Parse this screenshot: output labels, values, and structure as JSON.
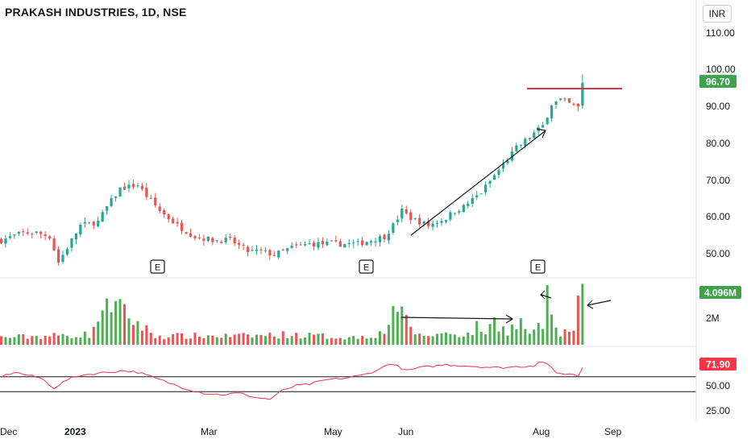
{
  "header": {
    "title": "PRAKASH INDUSTRIES, 1D, NSE",
    "currency": "INR"
  },
  "colors": {
    "up": "#26a69a",
    "up_bar": "#4caf50",
    "down": "#ef5350",
    "hline": "#e0334a",
    "rsi_line": "#f23645",
    "badge_green": "#3fa34d",
    "badge_red": "#f23645"
  },
  "price_axis": {
    "ticks": [
      "110.00",
      "100.00",
      "90.00",
      "80.00",
      "70.00",
      "60.00",
      "50.00"
    ],
    "last_price": "96.70"
  },
  "volume_axis": {
    "ticks": [
      "2M"
    ],
    "last_volume": "4.096M"
  },
  "rsi_axis": {
    "ticks": [
      "50.00",
      "25.00"
    ],
    "last_value": "71.90"
  },
  "time_axis": {
    "labels": [
      "Dec",
      "2023",
      "Mar",
      "May",
      "Jun",
      "Aug",
      "Sep"
    ]
  },
  "earnings_markers": [
    "E",
    "E",
    "E"
  ],
  "chart_data": {
    "type": "candlestick",
    "title": "PRAKASH INDUSTRIES, 1D, NSE",
    "price_range": [
      45,
      115
    ],
    "resistance_level": 94.7,
    "rsi_levels": [
      60,
      40
    ],
    "price_path": [
      [
        0,
        54
      ],
      [
        5,
        56
      ],
      [
        8,
        56
      ],
      [
        11,
        55
      ],
      [
        13,
        48
      ],
      [
        15,
        52
      ],
      [
        18,
        58
      ],
      [
        22,
        59
      ],
      [
        24,
        63
      ],
      [
        27,
        68
      ],
      [
        31,
        69
      ],
      [
        33,
        66
      ],
      [
        36,
        62
      ],
      [
        40,
        58
      ],
      [
        44,
        55
      ],
      [
        48,
        54
      ],
      [
        52,
        54
      ],
      [
        56,
        51
      ],
      [
        59,
        51
      ],
      [
        62,
        50
      ],
      [
        66,
        52
      ],
      [
        70,
        53
      ],
      [
        74,
        53
      ],
      [
        78,
        53
      ],
      [
        81,
        53
      ],
      [
        84,
        54
      ],
      [
        87,
        55
      ],
      [
        89,
        58
      ],
      [
        91,
        62
      ],
      [
        93,
        60
      ],
      [
        95,
        59
      ],
      [
        97,
        58
      ],
      [
        99,
        59
      ],
      [
        101,
        60
      ],
      [
        103,
        62
      ],
      [
        105,
        63
      ],
      [
        107,
        65
      ],
      [
        109,
        67
      ],
      [
        111,
        70
      ],
      [
        113,
        73
      ],
      [
        115,
        76
      ],
      [
        117,
        79
      ],
      [
        119,
        81
      ],
      [
        121,
        83
      ],
      [
        123,
        85
      ],
      [
        124,
        88
      ],
      [
        125,
        91
      ],
      [
        127,
        92
      ],
      [
        129,
        91
      ],
      [
        131,
        90
      ],
      [
        132,
        96.7
      ]
    ],
    "volume_path": [
      [
        0,
        0.5
      ],
      [
        20,
        0.7
      ],
      [
        23,
        2.3
      ],
      [
        24,
        3.1
      ],
      [
        26,
        2.6
      ],
      [
        35,
        0.6
      ],
      [
        55,
        0.6
      ],
      [
        65,
        0.7
      ],
      [
        80,
        0.5
      ],
      [
        87,
        0.8
      ],
      [
        89,
        2.6
      ],
      [
        95,
        0.6
      ],
      [
        102,
        0.8
      ],
      [
        106,
        0.7
      ],
      [
        108,
        1.2
      ],
      [
        110,
        0.9
      ],
      [
        112,
        1.6
      ],
      [
        115,
        1.0
      ],
      [
        118,
        1.5
      ],
      [
        120,
        0.8
      ],
      [
        122,
        1.1
      ],
      [
        123,
        1.3
      ],
      [
        124,
        4.0
      ],
      [
        126,
        0.9
      ],
      [
        130,
        0.8
      ],
      [
        132,
        4.096
      ]
    ],
    "rsi_path": [
      [
        0,
        60
      ],
      [
        3,
        66
      ],
      [
        6,
        62
      ],
      [
        9,
        58
      ],
      [
        12,
        45
      ],
      [
        15,
        56
      ],
      [
        18,
        62
      ],
      [
        21,
        64
      ],
      [
        24,
        66
      ],
      [
        28,
        68
      ],
      [
        31,
        66
      ],
      [
        34,
        60
      ],
      [
        38,
        52
      ],
      [
        42,
        44
      ],
      [
        46,
        38
      ],
      [
        50,
        36
      ],
      [
        54,
        38
      ],
      [
        58,
        32
      ],
      [
        61,
        30
      ],
      [
        64,
        42
      ],
      [
        67,
        48
      ],
      [
        70,
        50
      ],
      [
        74,
        56
      ],
      [
        78,
        58
      ],
      [
        82,
        62
      ],
      [
        86,
        70
      ],
      [
        88,
        78
      ],
      [
        90,
        74
      ],
      [
        92,
        68
      ],
      [
        95,
        72
      ],
      [
        98,
        74
      ],
      [
        101,
        76
      ],
      [
        104,
        75
      ],
      [
        107,
        74
      ],
      [
        110,
        73
      ],
      [
        113,
        72
      ],
      [
        116,
        73
      ],
      [
        119,
        74
      ],
      [
        121,
        75
      ],
      [
        122,
        80
      ],
      [
        123,
        79
      ],
      [
        124,
        78
      ],
      [
        126,
        64
      ],
      [
        129,
        64
      ],
      [
        131,
        61
      ],
      [
        132,
        71.9
      ]
    ]
  }
}
